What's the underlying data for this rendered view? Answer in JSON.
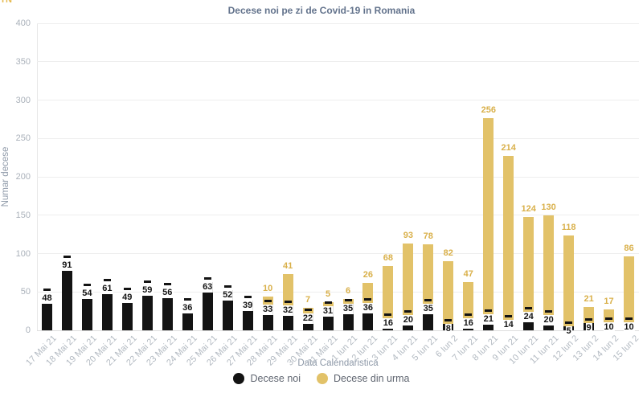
{
  "page": {
    "corner_fragment": "IN"
  },
  "chart_data": {
    "type": "bar",
    "stacked": true,
    "title": "Decese noi pe zi de Covid-19 in Romania",
    "xlabel": "Data Calendaristica",
    "ylabel": "Numar decese",
    "ylim": [
      0,
      400
    ],
    "ytick_interval": 50,
    "grid": true,
    "legend_position": "bottom",
    "categories": [
      "17 Mai 21",
      "18 Mai 21",
      "19 Mai 21",
      "20 Mai 21",
      "21 Mai 21",
      "22 Mai 21",
      "23 Mai 21",
      "24 Mai 21",
      "25 Mai 21",
      "26 Mai 21",
      "27 Mai 21",
      "28 Mai 21",
      "29 Mai 21",
      "30 Mai 21",
      "31 Mai 21",
      "1 Iun 21",
      "2 Iun 21",
      "3 Iun 21",
      "4 Iun 21",
      "5 Iun 21",
      "6 Iun 2",
      "7 Iun 21",
      "8 Iun 21",
      "9 Iun 21",
      "10 Iun 21",
      "11 Iun 21",
      "12 Iun 2",
      "13 Iun 2",
      "14 Iun 2",
      "15 Iun 2"
    ],
    "series": [
      {
        "name": "Decese noi",
        "color": "#131313",
        "label_color": "#141414",
        "values": [
          48,
          91,
          54,
          61,
          49,
          59,
          56,
          36,
          63,
          52,
          39,
          33,
          32,
          22,
          31,
          35,
          36,
          16,
          20,
          35,
          8,
          16,
          21,
          14,
          24,
          20,
          5,
          9,
          10,
          10
        ]
      },
      {
        "name": "Decese din urma",
        "color": "#e2c269",
        "label_color": "#d9b04a",
        "values": [
          0,
          0,
          0,
          0,
          0,
          0,
          0,
          0,
          0,
          0,
          0,
          10,
          41,
          7,
          5,
          6,
          26,
          68,
          93,
          78,
          82,
          47,
          256,
          214,
          124,
          130,
          118,
          21,
          17,
          86
        ]
      }
    ]
  }
}
